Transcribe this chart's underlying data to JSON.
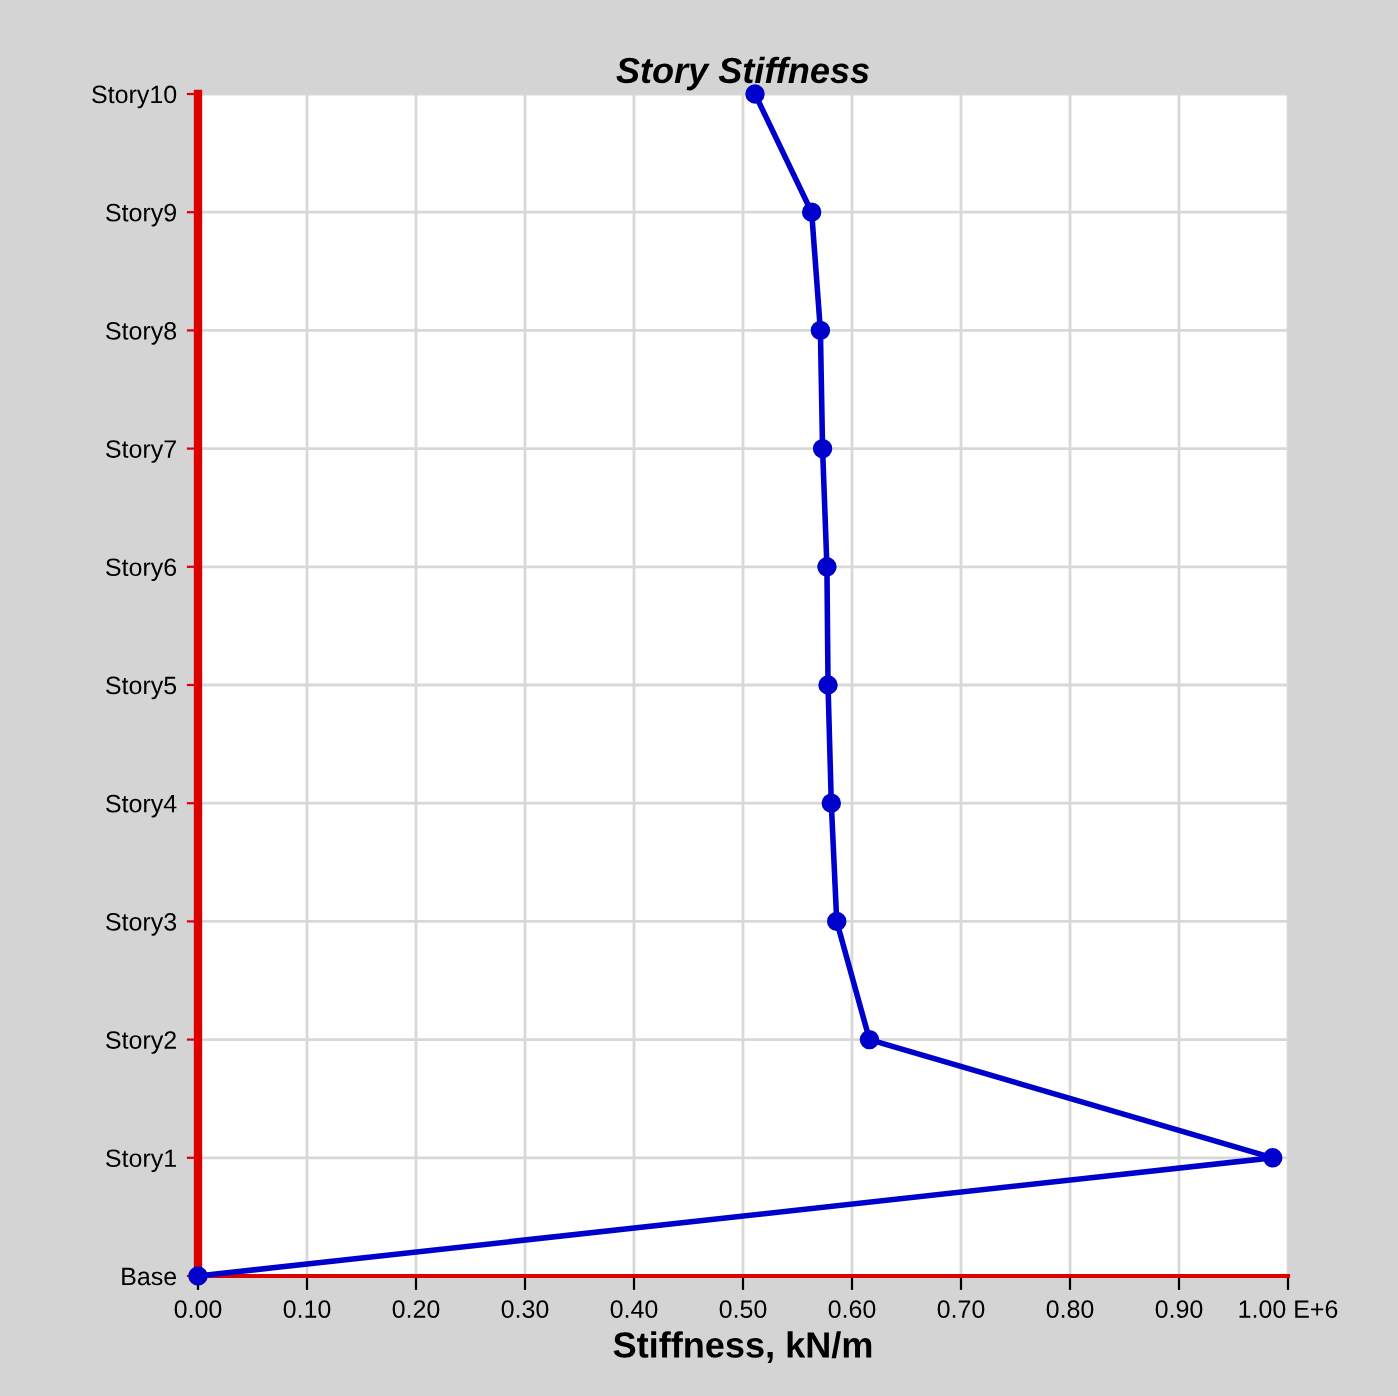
{
  "chart_data": {
    "type": "line",
    "orientation": "horizontal",
    "title": "Story Stiffness",
    "xlabel": "Stiffness, kN/m",
    "categories": [
      "Story10",
      "Story9",
      "Story8",
      "Story7",
      "Story6",
      "Story5",
      "Story4",
      "Story3",
      "Story2",
      "Story1",
      "Base"
    ],
    "series": [
      {
        "color": "#0000cc",
        "values": [
          0.511,
          0.563,
          0.571,
          0.573,
          0.577,
          0.578,
          0.581,
          0.586,
          0.616,
          0.986,
          0
        ]
      }
    ],
    "xlim": [
      0,
      1.0
    ],
    "xticks": [
      {
        "value": 0,
        "label": "0.00"
      },
      {
        "value": 0.1,
        "label": "0.10"
      },
      {
        "value": 0.2,
        "label": "0.20"
      },
      {
        "value": 0.3,
        "label": "0.30"
      },
      {
        "value": 0.4,
        "label": "0.40"
      },
      {
        "value": 0.5,
        "label": "0.50"
      },
      {
        "value": 0.6,
        "label": "0.60"
      },
      {
        "value": 0.7,
        "label": "0.70"
      },
      {
        "value": 0.8,
        "label": "0.80"
      },
      {
        "value": 0.9,
        "label": "0.90"
      },
      {
        "value": 1.0,
        "label": "1.00 E+6"
      }
    ],
    "grid": true,
    "marker": "circle",
    "line_style": "solid"
  }
}
